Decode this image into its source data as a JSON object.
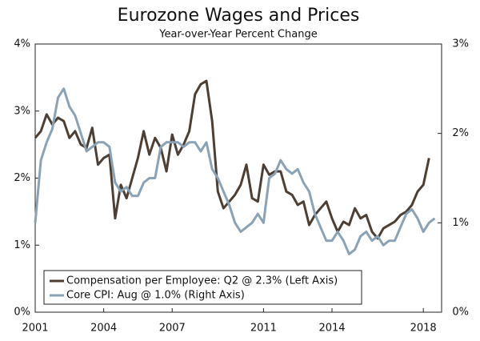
{
  "chart_data": {
    "type": "line",
    "title": "Eurozone Wages and Prices",
    "subtitle": "Year-over-Year Percent Change",
    "xlim": [
      2001,
      2018.8
    ],
    "xticks": [
      2001,
      2004,
      2007,
      2011,
      2014,
      2018
    ],
    "ylim": [
      0,
      4
    ],
    "yticks": [
      {
        "value": 0,
        "label": "0%"
      },
      {
        "value": 1,
        "label": "1%"
      },
      {
        "value": 2,
        "label": "2%"
      },
      {
        "value": 3,
        "label": "3%"
      },
      {
        "value": 4,
        "label": "4%"
      }
    ],
    "y2lim": [
      0,
      3
    ],
    "y2ticks": [
      {
        "value": 0,
        "label": "0%"
      },
      {
        "value": 1,
        "label": "1%"
      },
      {
        "value": 2,
        "label": "2%"
      },
      {
        "value": 3,
        "label": "3%"
      }
    ],
    "series": [
      {
        "name": "Compensation per Employee: Q2 @ 2.3% (Left Axis)",
        "color": "#4d3f33",
        "x": [
          2001,
          2001.25,
          2001.5,
          2001.75,
          2002,
          2002.25,
          2002.5,
          2002.75,
          2003,
          2003.25,
          2003.5,
          2003.75,
          2004,
          2004.25,
          2004.5,
          2004.75,
          2005,
          2005.25,
          2005.5,
          2005.75,
          2006,
          2006.25,
          2006.5,
          2006.75,
          2007,
          2007.25,
          2007.5,
          2007.75,
          2008,
          2008.25,
          2008.5,
          2008.75,
          2009,
          2009.25,
          2009.5,
          2009.75,
          2010,
          2010.25,
          2010.5,
          2010.75,
          2011,
          2011.25,
          2011.5,
          2011.75,
          2012,
          2012.25,
          2012.5,
          2012.75,
          2013,
          2013.25,
          2013.5,
          2013.75,
          2014,
          2014.25,
          2014.5,
          2014.75,
          2015,
          2015.25,
          2015.5,
          2015.75,
          2016,
          2016.25,
          2016.5,
          2016.75,
          2017,
          2017.25,
          2017.5,
          2017.75,
          2018,
          2018.25
        ],
        "values": [
          2.6,
          2.7,
          2.95,
          2.8,
          2.9,
          2.85,
          2.6,
          2.7,
          2.5,
          2.45,
          2.75,
          2.2,
          2.3,
          2.35,
          1.4,
          1.9,
          1.7,
          2.0,
          2.3,
          2.7,
          2.35,
          2.6,
          2.45,
          2.1,
          2.65,
          2.35,
          2.5,
          2.7,
          3.25,
          3.4,
          3.45,
          2.85,
          1.8,
          1.55,
          1.65,
          1.75,
          1.9,
          2.2,
          1.7,
          1.65,
          2.2,
          2.05,
          2.1,
          2.1,
          1.8,
          1.75,
          1.6,
          1.65,
          1.3,
          1.45,
          1.55,
          1.65,
          1.4,
          1.2,
          1.35,
          1.3,
          1.55,
          1.4,
          1.45,
          1.2,
          1.1,
          1.25,
          1.3,
          1.35,
          1.45,
          1.5,
          1.6,
          1.8,
          1.9,
          2.3
        ]
      },
      {
        "name": "Core CPI: Aug @ 1.0% (Right Axis)",
        "color": "#8aa2b5",
        "axis": "y2",
        "x": [
          2001,
          2001.25,
          2001.5,
          2001.75,
          2002,
          2002.25,
          2002.5,
          2002.75,
          2003,
          2003.25,
          2003.5,
          2003.75,
          2004,
          2004.25,
          2004.5,
          2004.75,
          2005,
          2005.25,
          2005.5,
          2005.75,
          2006,
          2006.25,
          2006.5,
          2006.75,
          2007,
          2007.25,
          2007.5,
          2007.75,
          2008,
          2008.25,
          2008.5,
          2008.75,
          2009,
          2009.25,
          2009.5,
          2009.75,
          2010,
          2010.25,
          2010.5,
          2010.75,
          2011,
          2011.25,
          2011.5,
          2011.75,
          2012,
          2012.25,
          2012.5,
          2012.75,
          2013,
          2013.25,
          2013.5,
          2013.75,
          2014,
          2014.25,
          2014.5,
          2014.75,
          2015,
          2015.25,
          2015.5,
          2015.75,
          2016,
          2016.25,
          2016.5,
          2016.75,
          2017,
          2017.25,
          2017.5,
          2017.75,
          2018,
          2018.25,
          2018.5
        ],
        "values": [
          1.0,
          1.7,
          1.9,
          2.05,
          2.4,
          2.5,
          2.3,
          2.2,
          2.0,
          1.8,
          1.85,
          1.9,
          1.9,
          1.85,
          1.45,
          1.35,
          1.4,
          1.3,
          1.3,
          1.45,
          1.5,
          1.5,
          1.85,
          1.9,
          1.9,
          1.9,
          1.85,
          1.9,
          1.9,
          1.8,
          1.9,
          1.6,
          1.5,
          1.35,
          1.2,
          1.0,
          0.9,
          0.95,
          1.0,
          1.1,
          1.0,
          1.5,
          1.55,
          1.7,
          1.6,
          1.55,
          1.6,
          1.45,
          1.35,
          1.1,
          0.95,
          0.8,
          0.8,
          0.9,
          0.8,
          0.65,
          0.7,
          0.85,
          0.9,
          0.8,
          0.85,
          0.75,
          0.8,
          0.8,
          0.95,
          1.1,
          1.15,
          1.05,
          0.9,
          1.0,
          1.05
        ]
      }
    ]
  }
}
